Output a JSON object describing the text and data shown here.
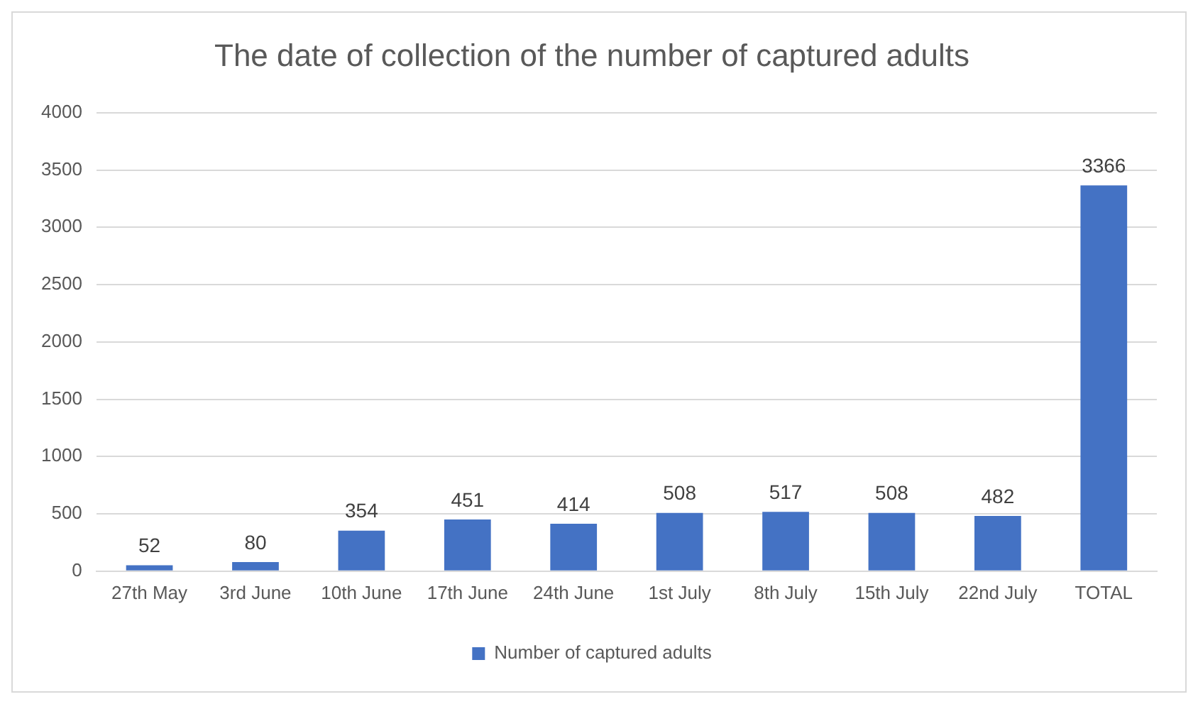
{
  "chart_data": {
    "type": "bar",
    "title": "The date of collection of the number of captured adults",
    "categories": [
      "27th May",
      "3rd June",
      "10th June",
      "17th June",
      "24th June",
      "1st July",
      "8th July",
      "15th July",
      "22nd July",
      "TOTAL"
    ],
    "series": [
      {
        "name": "Number of captured adults",
        "color": "#4472c4",
        "values": [
          52,
          80,
          354,
          451,
          414,
          508,
          517,
          508,
          482,
          3366
        ]
      }
    ],
    "ylim": [
      0,
      4000
    ],
    "yticks": [
      0,
      500,
      1000,
      1500,
      2000,
      2500,
      3000,
      3500,
      4000
    ],
    "grid": "y",
    "legend": "bottom",
    "data_labels": true
  }
}
